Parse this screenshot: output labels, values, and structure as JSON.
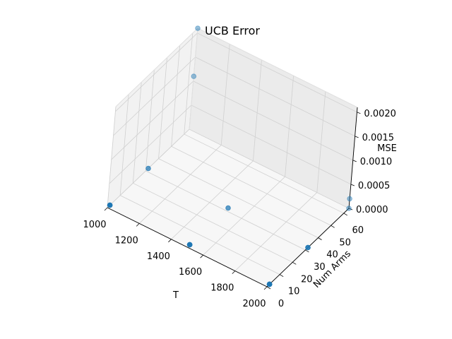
{
  "chart_data": {
    "type": "scatter",
    "projection": "3d",
    "title": "UCB Error",
    "xlabel": "T",
    "ylabel": "Num Arms",
    "zlabel": "MSE",
    "xlim": [
      1000,
      2000
    ],
    "ylim": [
      0,
      64
    ],
    "zlim": [
      0,
      0.0021
    ],
    "xticks": [
      1000,
      1200,
      1400,
      1600,
      1800,
      2000
    ],
    "yticks": [
      0,
      10,
      20,
      30,
      40,
      50,
      60
    ],
    "zticks": [
      "0.0000",
      "0.0005",
      "0.0010",
      "0.0015",
      "0.0020"
    ],
    "zticks_values": [
      0,
      0.0005,
      0.001,
      0.0015,
      0.002
    ],
    "grid": true,
    "marker_color": "#1f77b4",
    "points": [
      {
        "x": 1000,
        "y": 2,
        "z": 0.0
      },
      {
        "x": 1000,
        "y": 2,
        "z": 0.0
      },
      {
        "x": 1000,
        "y": 64,
        "z": 0.0021
      },
      {
        "x": 1000,
        "y": 64,
        "z": 0.0011
      },
      {
        "x": 1000,
        "y": 32,
        "z": 0.0
      },
      {
        "x": 1500,
        "y": 2,
        "z": 0.0
      },
      {
        "x": 1500,
        "y": 2,
        "z": 0.0
      },
      {
        "x": 1500,
        "y": 2,
        "z": 0.0
      },
      {
        "x": 1500,
        "y": 32,
        "z": 0.0
      },
      {
        "x": 2000,
        "y": 2,
        "z": 0.0
      },
      {
        "x": 2000,
        "y": 2,
        "z": 0.0
      },
      {
        "x": 2000,
        "y": 2,
        "z": 0.0
      },
      {
        "x": 2000,
        "y": 2,
        "z": 0.0
      },
      {
        "x": 2000,
        "y": 32,
        "z": 0.0
      },
      {
        "x": 2000,
        "y": 32,
        "z": 0.0
      },
      {
        "x": 2000,
        "y": 64,
        "z": 0.0
      },
      {
        "x": 2000,
        "y": 64,
        "z": 0.0002
      }
    ]
  }
}
